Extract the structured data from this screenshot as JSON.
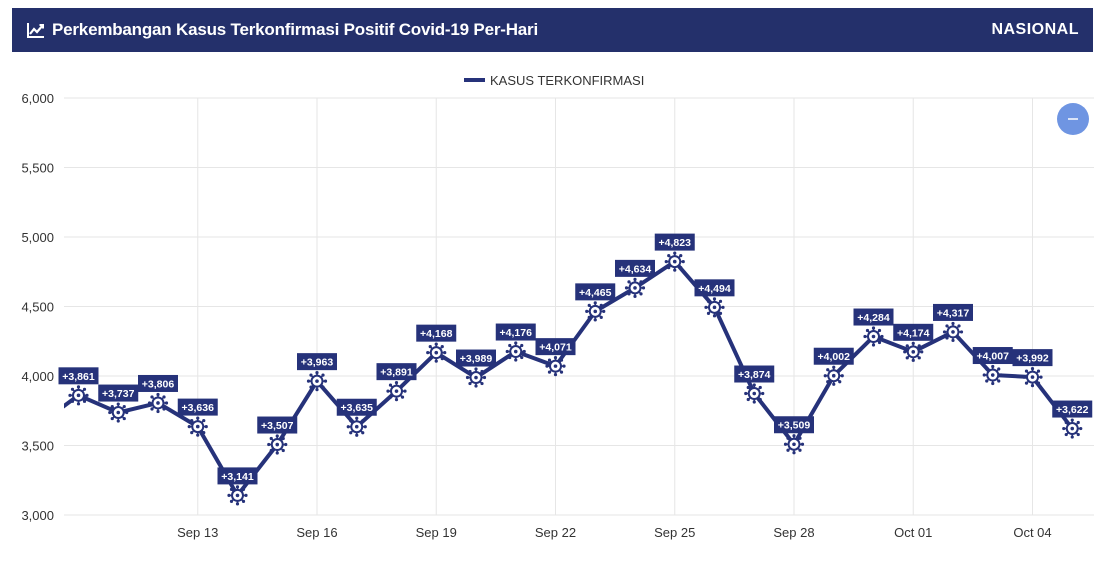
{
  "header": {
    "title": "Perkembangan Kasus Terkonfirmasi Positif Covid-19 Per-Hari",
    "scope": "NASIONAL",
    "icon": "line-chart-icon"
  },
  "controls": {
    "collapse_icon": "minus-icon"
  },
  "colors": {
    "header_bg": "#24306b",
    "series": "#26327a",
    "collapse_button": "#6f95e2",
    "grid": "#e6e6e6"
  },
  "chart_data": {
    "type": "line",
    "legend": {
      "position": "top-center",
      "entries": [
        "KASUS TERKONFIRMASI"
      ]
    },
    "grid": true,
    "ylim": [
      3000,
      6000
    ],
    "yticks": [
      "3,000",
      "3,500",
      "4,000",
      "4,500",
      "5,000",
      "5,500",
      "6,000"
    ],
    "xlabels": [
      "Sep 13",
      "Sep 16",
      "Sep 19",
      "Sep 22",
      "Sep 25",
      "Sep 28",
      "Oct 01",
      "Oct 04"
    ],
    "x": [
      "Sep 10",
      "Sep 11",
      "Sep 12",
      "Sep 13",
      "Sep 14",
      "Sep 15",
      "Sep 16",
      "Sep 17",
      "Sep 18",
      "Sep 19",
      "Sep 20",
      "Sep 21",
      "Sep 22",
      "Sep 23",
      "Sep 24",
      "Sep 25",
      "Sep 26",
      "Sep 27",
      "Sep 28",
      "Sep 29",
      "Sep 30",
      "Oct 01",
      "Oct 02",
      "Oct 03",
      "Oct 04",
      "Oct 05"
    ],
    "series": [
      {
        "name": "KASUS TERKONFIRMASI",
        "values": [
          3861,
          3737,
          3806,
          3636,
          3141,
          3507,
          3963,
          3635,
          3891,
          4168,
          3989,
          4176,
          4071,
          4465,
          4634,
          4823,
          4494,
          3874,
          3509,
          4002,
          4284,
          4174,
          4317,
          4007,
          3992,
          3622
        ],
        "labels": [
          "+3,861",
          "+3,737",
          "+3,806",
          "+3,636",
          "+3,141",
          "+3,507",
          "+3,963",
          "+3,635",
          "+3,891",
          "+4,168",
          "+3,989",
          "+4,176",
          "+4,071",
          "+4,465",
          "+4,634",
          "+4,823",
          "+4,494",
          "+3,874",
          "+3,509",
          "+4,002",
          "+4,284",
          "+4,174",
          "+4,317",
          "+4,007",
          "+3,992",
          "+3,622"
        ]
      }
    ]
  }
}
